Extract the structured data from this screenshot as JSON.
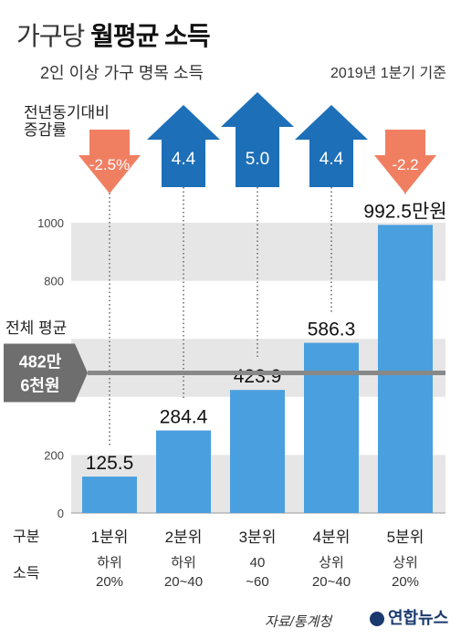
{
  "title_light": "가구당",
  "title_bold": "월평균 소득",
  "subtitle": "2인 이상 가구 명목 소득",
  "date_note": "2019년 1분기 기준",
  "yoy_label_1": "전년동기대비",
  "yoy_label_2": "증감률",
  "avg_label": "전체 평균",
  "avg_badge_1": "482만",
  "avg_badge_2": "6천원",
  "row_label_category": "구분",
  "row_label_income": "소득",
  "source": "자료/통계청",
  "logo_text": "연합뉴스",
  "colors": {
    "bar": "#4a9fde",
    "up": "#1d6fb8",
    "down": "#f07f62",
    "band": "#e6e6e6",
    "avg_line": "#888888",
    "badge": "#6e6e6e"
  },
  "chart_data": {
    "type": "bar",
    "categories": [
      "1분위",
      "2분위",
      "3분위",
      "4분위",
      "5분위"
    ],
    "category_sublabels": [
      [
        "하위",
        "20%"
      ],
      [
        "하위",
        "20~40"
      ],
      [
        "40",
        "~60"
      ],
      [
        "상위",
        "20~40"
      ],
      [
        "상위",
        "20%"
      ]
    ],
    "values": [
      125.5,
      284.4,
      423.9,
      586.3,
      992.5
    ],
    "value_labels": [
      "125.5",
      "284.4",
      "423.9",
      "586.3",
      "992.5만원"
    ],
    "yoy_change": [
      -2.5,
      4.4,
      5.0,
      4.4,
      -2.2
    ],
    "yoy_labels": [
      "-2.5%",
      "4.4",
      "5.0",
      "4.4",
      "-2.2"
    ],
    "y_ticks": [
      0,
      200,
      400,
      600,
      800,
      1000
    ],
    "y_tick_labels": [
      "0",
      "200",
      "400",
      "",
      "800",
      "1000"
    ],
    "ylim": [
      0,
      1020
    ],
    "average": 482.6
  }
}
